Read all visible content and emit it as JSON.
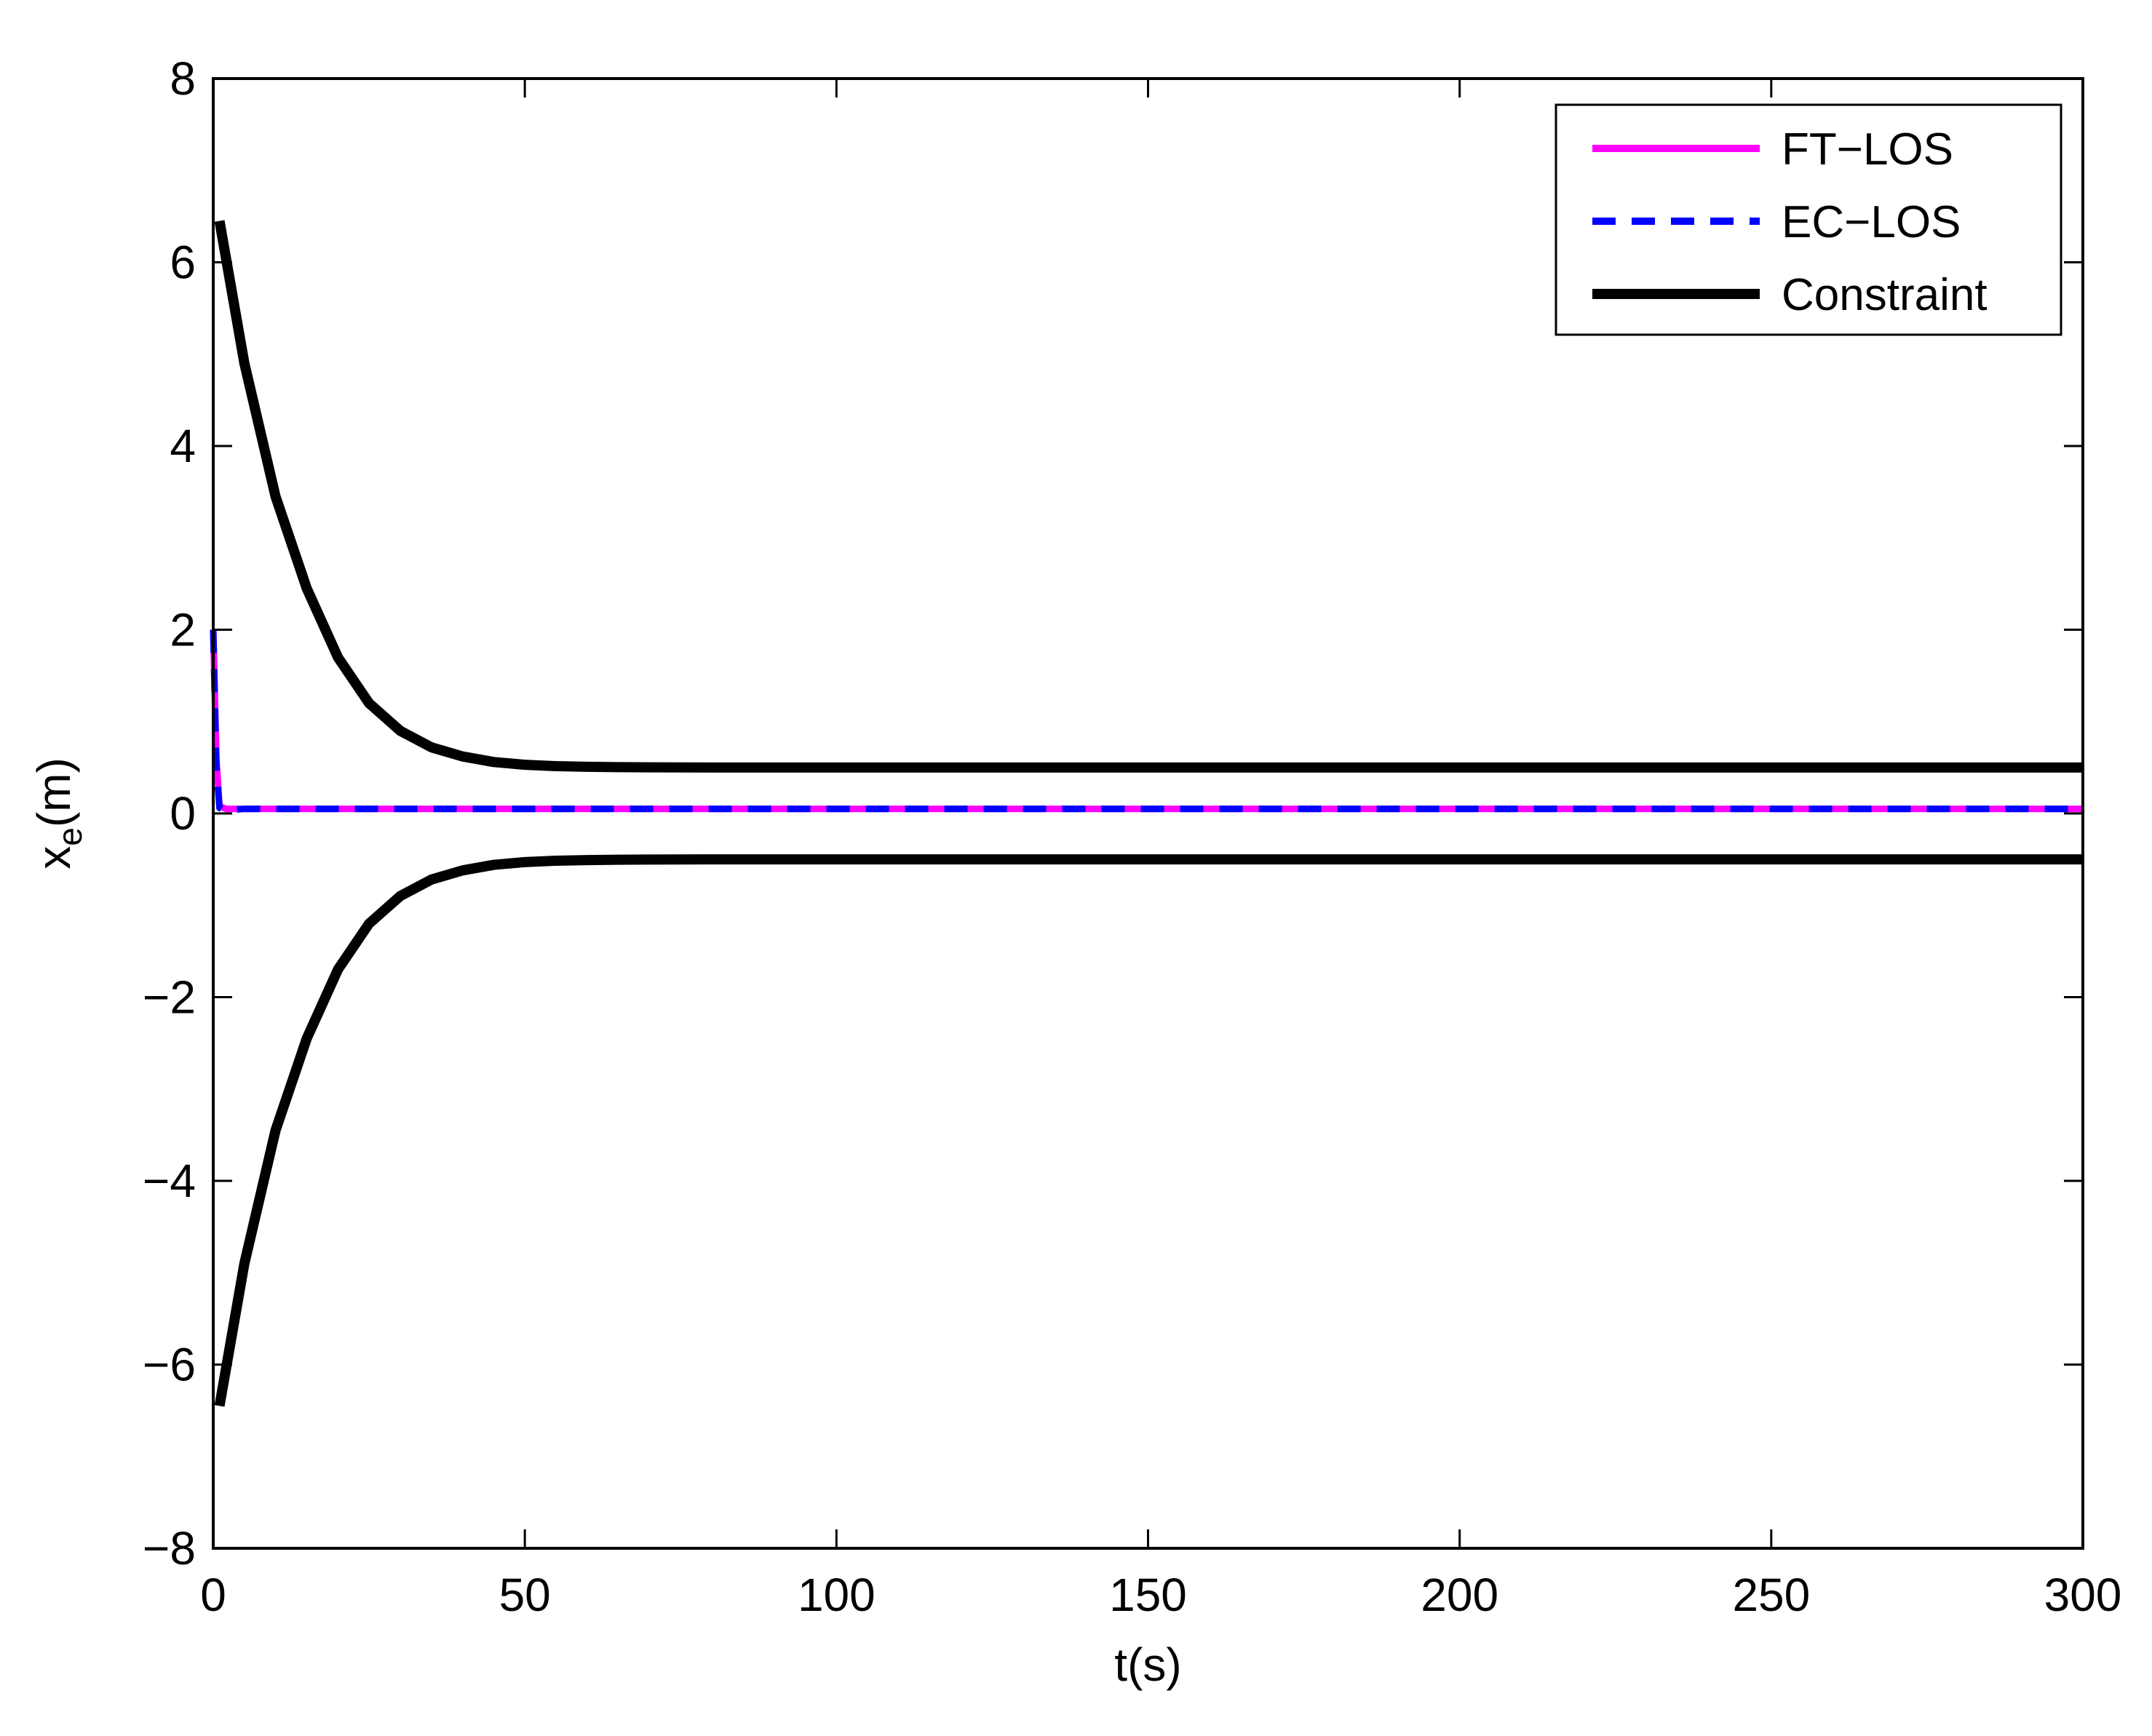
{
  "chart_data": {
    "type": "line",
    "title": "",
    "xlabel": "t(s)",
    "ylabel": {
      "main": "x",
      "subscript": "e",
      "unit": "(m)"
    },
    "xlim": [
      0,
      300
    ],
    "ylim": [
      -8,
      8
    ],
    "xticks": [
      0,
      50,
      100,
      150,
      200,
      250,
      300
    ],
    "yticks": [
      -8,
      -6,
      -4,
      -2,
      0,
      2,
      4,
      6,
      8
    ],
    "xtick_labels": [
      "0",
      "50",
      "100",
      "150",
      "200",
      "250",
      "300"
    ],
    "ytick_labels": [
      "−8",
      "−6",
      "−4",
      "−2",
      "0",
      "2",
      "4",
      "6",
      "8"
    ],
    "grid": false,
    "legend_position": "top-right",
    "series": [
      {
        "name": "FT−LOS",
        "color": "#ff00ff",
        "style": "solid",
        "x": [
          0,
          0.5,
          1,
          2,
          3,
          5,
          10,
          20,
          50,
          100,
          150,
          200,
          250,
          300
        ],
        "y": [
          2.0,
          0.6,
          0.08,
          0.05,
          0.05,
          0.05,
          0.05,
          0.05,
          0.05,
          0.05,
          0.05,
          0.05,
          0.05,
          0.05
        ]
      },
      {
        "name": "EC−LOS",
        "color": "#0000ff",
        "style": "dashed",
        "x": [
          0,
          0.5,
          1,
          2,
          3,
          5,
          10,
          20,
          50,
          100,
          150,
          200,
          250,
          300
        ],
        "y": [
          2.0,
          0.5,
          0.06,
          0.03,
          0.04,
          0.05,
          0.05,
          0.05,
          0.05,
          0.05,
          0.05,
          0.05,
          0.05,
          0.05
        ]
      },
      {
        "name": "Constraint",
        "color": "#000000",
        "style": "solid",
        "x": [
          1,
          5,
          10,
          15,
          20,
          25,
          30,
          35,
          40,
          45,
          50,
          55,
          60,
          65,
          70,
          80,
          100,
          150,
          200,
          250,
          300
        ],
        "upper": [
          6.45,
          4.9,
          3.45,
          2.45,
          1.7,
          1.2,
          0.9,
          0.72,
          0.62,
          0.56,
          0.53,
          0.515,
          0.508,
          0.504,
          0.502,
          0.5,
          0.5,
          0.5,
          0.5,
          0.5,
          0.5
        ],
        "lower": [
          -6.45,
          -4.9,
          -3.45,
          -2.45,
          -1.7,
          -1.2,
          -0.9,
          -0.72,
          -0.62,
          -0.56,
          -0.53,
          -0.515,
          -0.508,
          -0.504,
          -0.502,
          -0.5,
          -0.5,
          -0.5,
          -0.5,
          -0.5,
          -0.5
        ]
      }
    ]
  }
}
